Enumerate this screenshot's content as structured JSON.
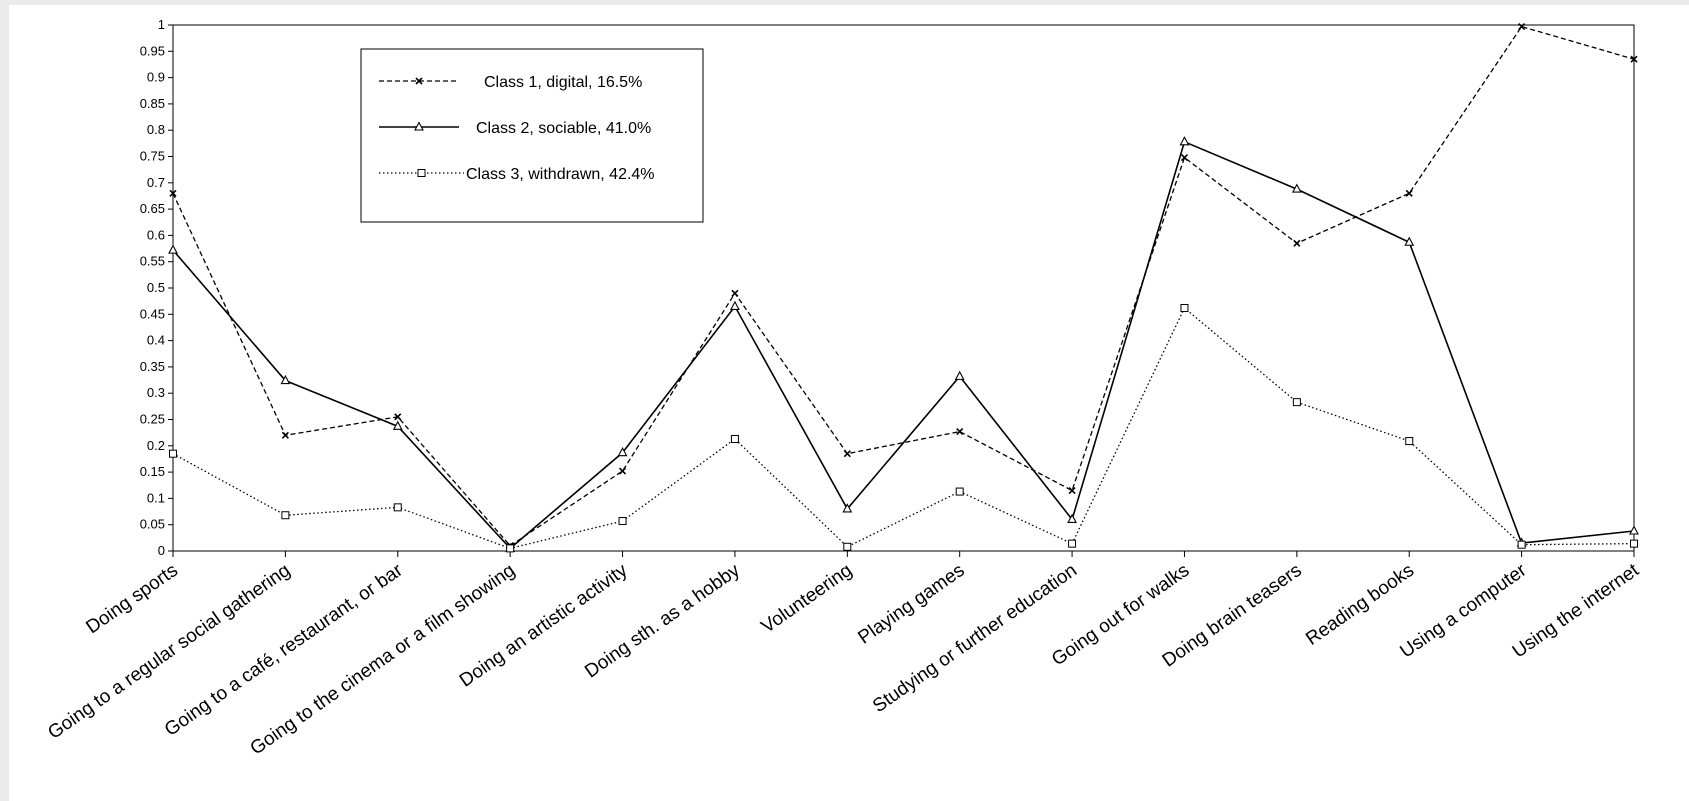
{
  "chart_data": {
    "type": "line",
    "title": "",
    "xlabel": "",
    "ylabel": "",
    "ylim": [
      0,
      1
    ],
    "yticks": [
      "0",
      "0.05",
      "0.1",
      "0.15",
      "0.2",
      "0.25",
      "0.3",
      "0.35",
      "0.4",
      "0.45",
      "0.5",
      "0.55",
      "0.6",
      "0.65",
      "0.7",
      "0.75",
      "0.8",
      "0.85",
      "0.9",
      "0.95",
      "1"
    ],
    "categories": [
      "Doing sports",
      "Going to a regular social gathering",
      "Going to a café, restaurant, or bar",
      "Going to the cinema or a film showing",
      "Doing an artistic activity",
      "Doing sth. as a hobby",
      "Volunteering",
      "Playing games",
      "Studying or further education",
      "Going out for walks",
      "Doing brain teasers",
      "Reading books",
      "Using a computer",
      "Using the internet"
    ],
    "series": [
      {
        "name": "Class 1, digital, 16.5%",
        "style": "dashed",
        "marker": "x",
        "color": "#000000",
        "values": [
          0.68,
          0.22,
          0.255,
          0.01,
          0.152,
          0.49,
          0.185,
          0.227,
          0.115,
          0.748,
          0.585,
          0.68,
          0.997,
          0.935
        ]
      },
      {
        "name": "Class 2, sociable, 41.0%",
        "style": "solid",
        "marker": "triangle",
        "color": "#000000",
        "values": [
          0.572,
          0.324,
          0.237,
          0.005,
          0.187,
          0.465,
          0.08,
          0.332,
          0.06,
          0.778,
          0.688,
          0.587,
          0.015,
          0.038
        ]
      },
      {
        "name": "Class 3, withdrawn, 42.4%",
        "style": "dotted",
        "marker": "square",
        "color": "#000000",
        "values": [
          0.185,
          0.068,
          0.083,
          0.005,
          0.057,
          0.213,
          0.008,
          0.113,
          0.014,
          0.462,
          0.283,
          0.209,
          0.012,
          0.014
        ]
      }
    ],
    "grid": false,
    "legend_position": "top-left"
  }
}
